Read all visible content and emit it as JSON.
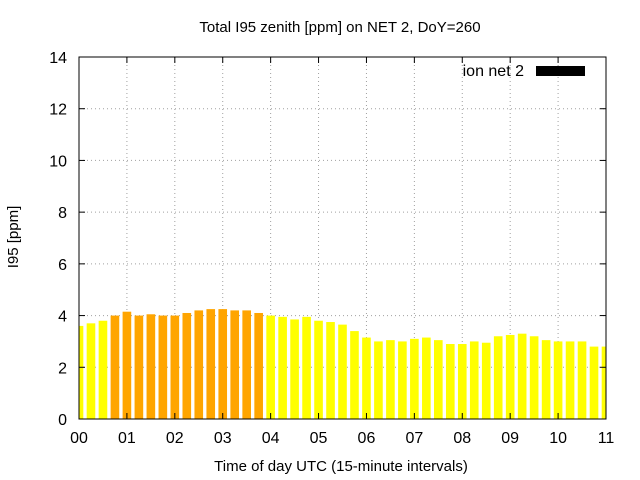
{
  "chart_data": {
    "type": "bar",
    "title": "Total I95 zenith [ppm] on NET 2, DoY=260",
    "xlabel": "Time of day UTC (15-minute intervals)",
    "ylabel": "I95 [ppm]",
    "xlim": [
      0,
      11
    ],
    "ylim": [
      0,
      14
    ],
    "x_ticks": [
      "00",
      "01",
      "02",
      "03",
      "04",
      "05",
      "06",
      "07",
      "08",
      "09",
      "10",
      "11"
    ],
    "y_ticks": [
      "0",
      "2",
      "4",
      "6",
      "8",
      "10",
      "12",
      "14"
    ],
    "grid": true,
    "legend": {
      "position": "top-right",
      "entries": [
        {
          "label": "ion net 2",
          "color": "#000000"
        }
      ]
    },
    "colors": {
      "normal": "#ffff00",
      "elevated": "#ffa500"
    },
    "series": [
      {
        "x": [
          0.0,
          0.25,
          0.5,
          0.75,
          1.0,
          1.25,
          1.5,
          1.75,
          2.0,
          2.25,
          2.5,
          2.75,
          3.0,
          3.25,
          3.5,
          3.75,
          4.0,
          4.25,
          4.5,
          4.75,
          5.0,
          5.25,
          5.5,
          5.75,
          6.0,
          6.25,
          6.5,
          6.75,
          7.0,
          7.25,
          7.5,
          7.75,
          8.0,
          8.25,
          8.5,
          8.75,
          9.0,
          9.25,
          9.5,
          9.75,
          10.0,
          10.25,
          10.5,
          10.75,
          11.0
        ],
        "values": [
          3.6,
          3.7,
          3.8,
          4.0,
          4.15,
          4.0,
          4.05,
          4.0,
          4.0,
          4.1,
          4.2,
          4.25,
          4.25,
          4.2,
          4.2,
          4.1,
          4.0,
          3.95,
          3.85,
          3.95,
          3.8,
          3.75,
          3.65,
          3.4,
          3.15,
          3.0,
          3.05,
          3.0,
          3.1,
          3.15,
          3.05,
          2.9,
          2.9,
          3.0,
          2.95,
          3.2,
          3.25,
          3.3,
          3.2,
          3.05,
          3.0,
          3.0,
          3.0,
          2.8,
          2.8
        ],
        "levels": [
          "normal",
          "normal",
          "normal",
          "elevated",
          "elevated",
          "elevated",
          "elevated",
          "elevated",
          "elevated",
          "elevated",
          "elevated",
          "elevated",
          "elevated",
          "elevated",
          "elevated",
          "elevated",
          "normal",
          "normal",
          "normal",
          "normal",
          "normal",
          "normal",
          "normal",
          "normal",
          "normal",
          "normal",
          "normal",
          "normal",
          "normal",
          "normal",
          "normal",
          "normal",
          "normal",
          "normal",
          "normal",
          "normal",
          "normal",
          "normal",
          "normal",
          "normal",
          "normal",
          "normal",
          "normal",
          "normal",
          "normal"
        ]
      }
    ]
  }
}
